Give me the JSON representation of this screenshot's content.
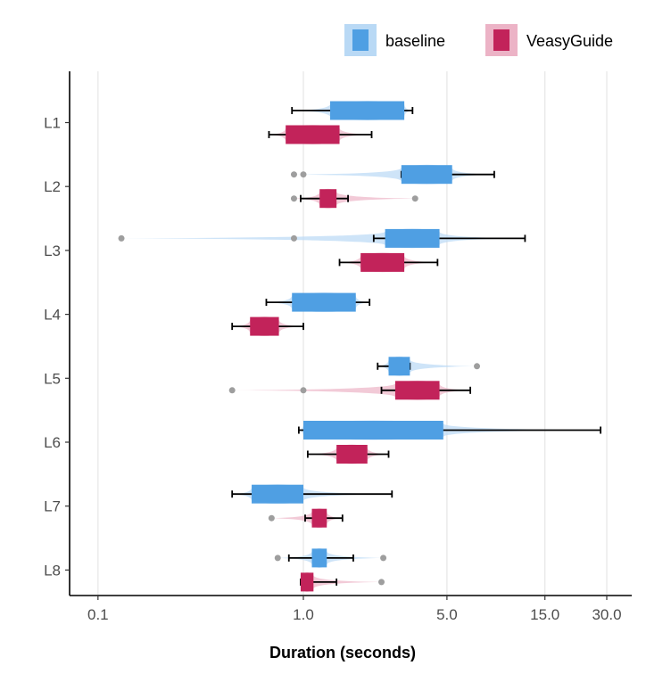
{
  "chart_data": {
    "type": "box",
    "xlabel": "Duration (seconds)",
    "x_scale": "log",
    "xlim": [
      0.085,
      40
    ],
    "x_ticks": [
      0.1,
      1.0,
      5.0,
      15.0,
      30.0
    ],
    "x_tick_labels": [
      "0.1",
      "1.0",
      "5.0",
      "15.0",
      "30.0"
    ],
    "grid": "vertical",
    "legend_position": "top-right",
    "categories": [
      "L1",
      "L2",
      "L3",
      "L4",
      "L5",
      "L6",
      "L7",
      "L8"
    ],
    "series": [
      {
        "name": "baseline",
        "color": "#4f9fe3",
        "violin_color": "#b9d9f5",
        "boxes": [
          {
            "whisker_low": 0.88,
            "q1": 1.35,
            "q3": 3.1,
            "whisker_high": 3.4,
            "outliers": []
          },
          {
            "whisker_low": 3.0,
            "q1": 3.0,
            "q3": 5.3,
            "whisker_high": 8.5,
            "outliers": [
              0.9,
              1.0
            ]
          },
          {
            "whisker_low": 2.2,
            "q1": 2.5,
            "q3": 4.6,
            "whisker_high": 12.0,
            "outliers": [
              0.13,
              0.9
            ]
          },
          {
            "whisker_low": 0.66,
            "q1": 0.88,
            "q3": 1.8,
            "whisker_high": 2.1,
            "outliers": []
          },
          {
            "whisker_low": 2.3,
            "q1": 2.6,
            "q3": 3.3,
            "whisker_high": 3.3,
            "outliers": [
              7.0
            ]
          },
          {
            "whisker_low": 0.95,
            "q1": 1.0,
            "q3": 4.8,
            "whisker_high": 28.0,
            "outliers": []
          },
          {
            "whisker_low": 0.45,
            "q1": 0.56,
            "q3": 1.0,
            "whisker_high": 2.7,
            "outliers": []
          },
          {
            "whisker_low": 0.85,
            "q1": 1.1,
            "q3": 1.3,
            "whisker_high": 1.75,
            "outliers": [
              0.75,
              2.45
            ]
          }
        ]
      },
      {
        "name": "VeasyGuide",
        "color": "#c2235a",
        "violin_color": "#ecb3c6",
        "boxes": [
          {
            "whisker_low": 0.68,
            "q1": 0.82,
            "q3": 1.5,
            "whisker_high": 2.15,
            "outliers": []
          },
          {
            "whisker_low": 0.97,
            "q1": 1.2,
            "q3": 1.45,
            "whisker_high": 1.65,
            "outliers": [
              0.9,
              3.5
            ]
          },
          {
            "whisker_low": 1.5,
            "q1": 1.9,
            "q3": 3.1,
            "whisker_high": 4.5,
            "outliers": []
          },
          {
            "whisker_low": 0.45,
            "q1": 0.55,
            "q3": 0.76,
            "whisker_high": 1.0,
            "outliers": []
          },
          {
            "whisker_low": 2.4,
            "q1": 2.8,
            "q3": 4.6,
            "whisker_high": 6.5,
            "outliers": [
              0.45,
              1.0
            ]
          },
          {
            "whisker_low": 1.05,
            "q1": 1.45,
            "q3": 2.05,
            "whisker_high": 2.6,
            "outliers": []
          },
          {
            "whisker_low": 1.02,
            "q1": 1.1,
            "q3": 1.3,
            "whisker_high": 1.55,
            "outliers": [
              0.7
            ]
          },
          {
            "whisker_low": 0.97,
            "q1": 0.97,
            "q3": 1.12,
            "whisker_high": 1.45,
            "outliers": [
              2.4
            ]
          }
        ]
      }
    ]
  }
}
